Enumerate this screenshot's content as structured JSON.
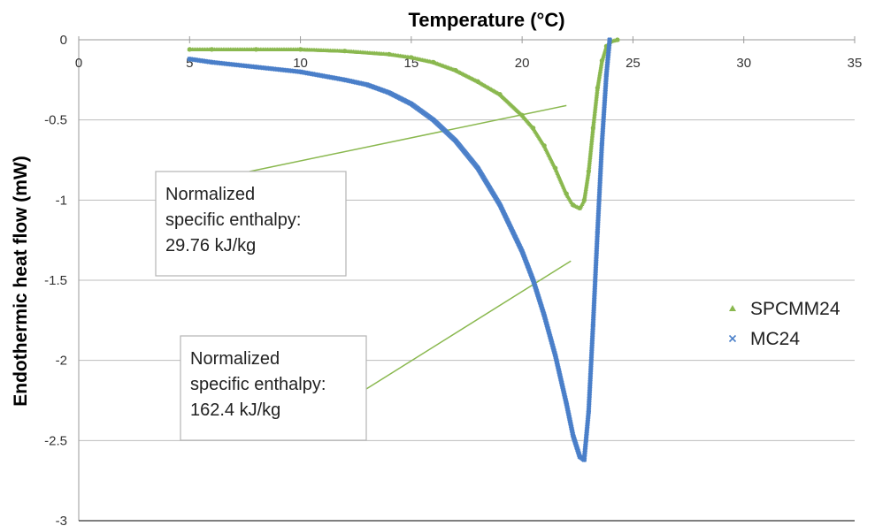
{
  "chart_data": {
    "type": "scatter",
    "title": "Temperature (°C)",
    "xlabel": "Temperature (°C)",
    "ylabel": "Endothermic heat flow (mW)",
    "xlim": [
      0,
      35
    ],
    "ylim": [
      -3,
      0
    ],
    "x_ticks": [
      "0",
      "5",
      "10",
      "15",
      "20",
      "25",
      "30",
      "35"
    ],
    "y_ticks": [
      "0",
      "-0.5",
      "-1",
      "-1.5",
      "-2",
      "-2.5",
      "-3"
    ],
    "x_axis_position": "top",
    "grid": "horizontal",
    "legend_position": "right",
    "series": [
      {
        "name": "SPCMM24",
        "color": "#8ab84f",
        "marker": "triangle",
        "x": [
          5,
          6,
          8,
          10,
          12,
          14,
          15,
          16,
          17,
          18,
          19,
          20,
          20.5,
          21,
          21.5,
          22,
          22.3,
          22.6,
          22.8,
          23.0,
          23.2,
          23.4,
          23.6,
          23.8,
          24.0,
          24.3
        ],
        "y": [
          -0.06,
          -0.06,
          -0.06,
          -0.06,
          -0.07,
          -0.09,
          -0.11,
          -0.14,
          -0.19,
          -0.26,
          -0.34,
          -0.47,
          -0.55,
          -0.66,
          -0.8,
          -0.96,
          -1.03,
          -1.05,
          -1.0,
          -0.82,
          -0.55,
          -0.3,
          -0.13,
          -0.04,
          -0.01,
          0.0
        ]
      },
      {
        "name": "MC24",
        "color": "#4a7fc9",
        "marker": "x",
        "x": [
          5,
          6,
          8,
          10,
          12,
          13,
          14,
          15,
          16,
          17,
          18,
          19,
          20,
          20.5,
          21,
          21.5,
          22,
          22.3,
          22.6,
          22.8,
          23.0,
          23.2,
          23.4,
          23.6,
          23.8,
          23.95
        ],
        "y": [
          -0.12,
          -0.14,
          -0.17,
          -0.2,
          -0.25,
          -0.28,
          -0.33,
          -0.4,
          -0.5,
          -0.63,
          -0.8,
          -1.03,
          -1.32,
          -1.5,
          -1.72,
          -1.97,
          -2.27,
          -2.47,
          -2.6,
          -2.62,
          -2.32,
          -1.78,
          -1.2,
          -0.65,
          -0.22,
          0.0
        ]
      }
    ],
    "annotations": [
      {
        "lines": [
          "Normalized",
          "specific enthalpy:",
          "29.76 kJ/kg"
        ],
        "leader_to": [
          22,
          -0.41
        ]
      },
      {
        "lines": [
          "Normalized",
          "specific enthalpy:",
          "162.4 kJ/kg"
        ],
        "leader_to": [
          22.2,
          -1.38
        ]
      }
    ]
  }
}
